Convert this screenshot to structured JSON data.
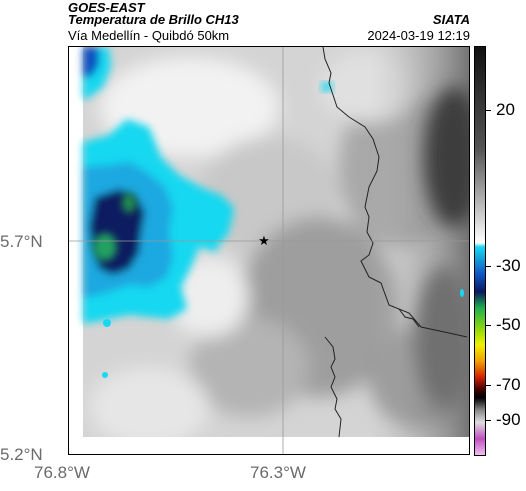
{
  "header": {
    "satellite": "GOES-EAST",
    "product": "Temperatura de Brillo CH13",
    "route": "Vía Medellín - Quibdó 50km",
    "agency": "SIATA",
    "datetime": "2024-03-19 12:19"
  },
  "map": {
    "lat_labels": [
      "5.7°N",
      "5.2°N"
    ],
    "lon_labels": [
      "76.8°W",
      "76.3°W"
    ],
    "marker": "star-marker"
  },
  "colorbar": {
    "ticks": [
      "20",
      "-30",
      "-50",
      "-70",
      "-90"
    ],
    "range": [
      -90,
      30
    ],
    "colors": {
      "warm_low": "#ffffff",
      "warm_high": "#111111",
      "cyan": "#17d8f0",
      "blue": "#1050c0",
      "navy": "#0a1a60",
      "green": "#20b050",
      "yellow": "#f0f000",
      "red": "#d02000",
      "black": "#000000",
      "magenta": "#c050c0"
    }
  }
}
